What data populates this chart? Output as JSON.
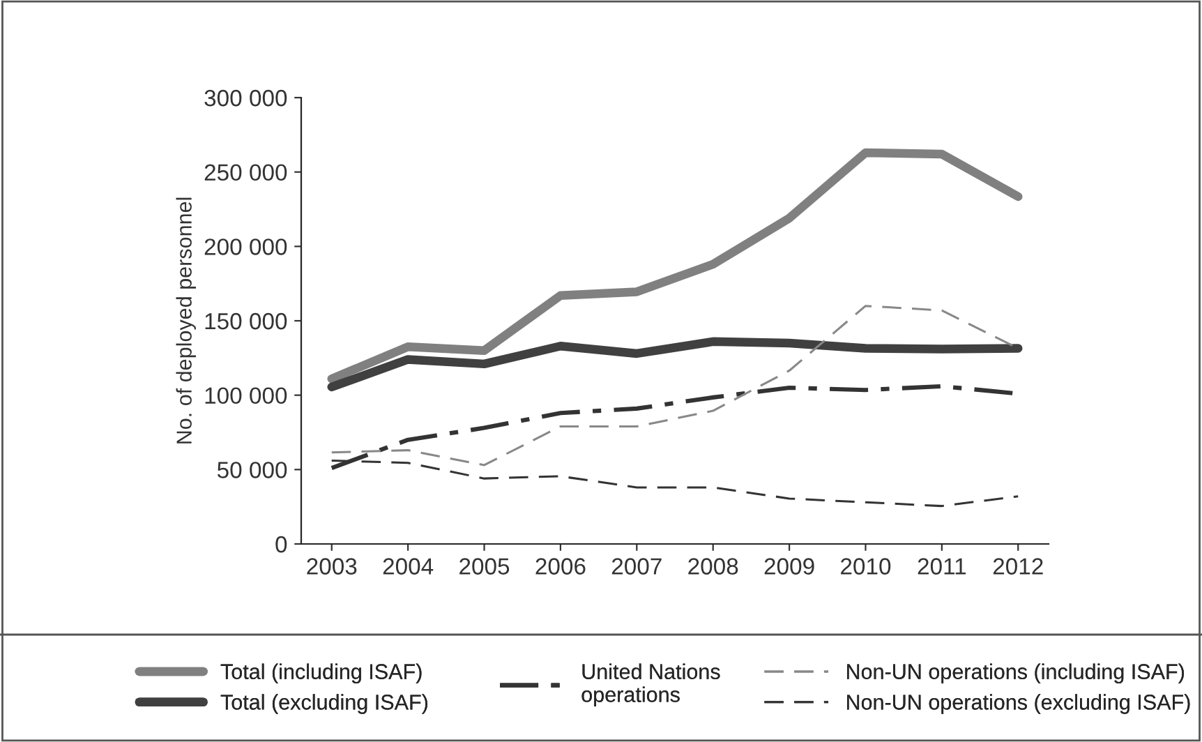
{
  "chart_data": {
    "type": "line",
    "ylabel": "No. of deployed personnel",
    "categories": [
      "2003",
      "2004",
      "2005",
      "2006",
      "2007",
      "2008",
      "2009",
      "2010",
      "2011",
      "2012"
    ],
    "ylim": [
      0,
      300000
    ],
    "yticks": [
      {
        "value": 0,
        "label": "0"
      },
      {
        "value": 50000,
        "label": "50 000"
      },
      {
        "value": 100000,
        "label": "100 000"
      },
      {
        "value": 150000,
        "label": "150 000"
      },
      {
        "value": 200000,
        "label": "200 000"
      },
      {
        "value": 250000,
        "label": "250 000"
      },
      {
        "value": 300000,
        "label": "300 000"
      }
    ],
    "grid": false,
    "legend": "bottom",
    "marker": "none",
    "series": [
      {
        "name": "Total (including ISAF)",
        "color": "#808080",
        "line_style": "solid",
        "values": [
          111000,
          132500,
          130000,
          167000,
          169500,
          188000,
          219000,
          263000,
          262000,
          233500
        ]
      },
      {
        "name": "Total (excluding ISAF)",
        "color": "#404040",
        "line_style": "solid",
        "values": [
          105500,
          124000,
          121000,
          133000,
          128000,
          136000,
          135000,
          131500,
          131000,
          131500
        ]
      },
      {
        "name": "United Nations\noperations",
        "color": "#333333",
        "line_style": "dashdot",
        "values": [
          51000,
          70000,
          78000,
          88000,
          91000,
          98500,
          105000,
          103500,
          106000,
          101000
        ]
      },
      {
        "name": "Non-UN operations (including ISAF)",
        "color": "#888888",
        "line_style": "dashed",
        "values": [
          61500,
          63000,
          53000,
          79000,
          79000,
          89500,
          116500,
          160000,
          157000,
          131500
        ]
      },
      {
        "name": "Non-UN operations (excluding ISAF)",
        "color": "#333333",
        "line_style": "dashed",
        "values": [
          56000,
          54500,
          44000,
          45500,
          38000,
          38000,
          30500,
          28000,
          25500,
          32000
        ]
      }
    ]
  }
}
